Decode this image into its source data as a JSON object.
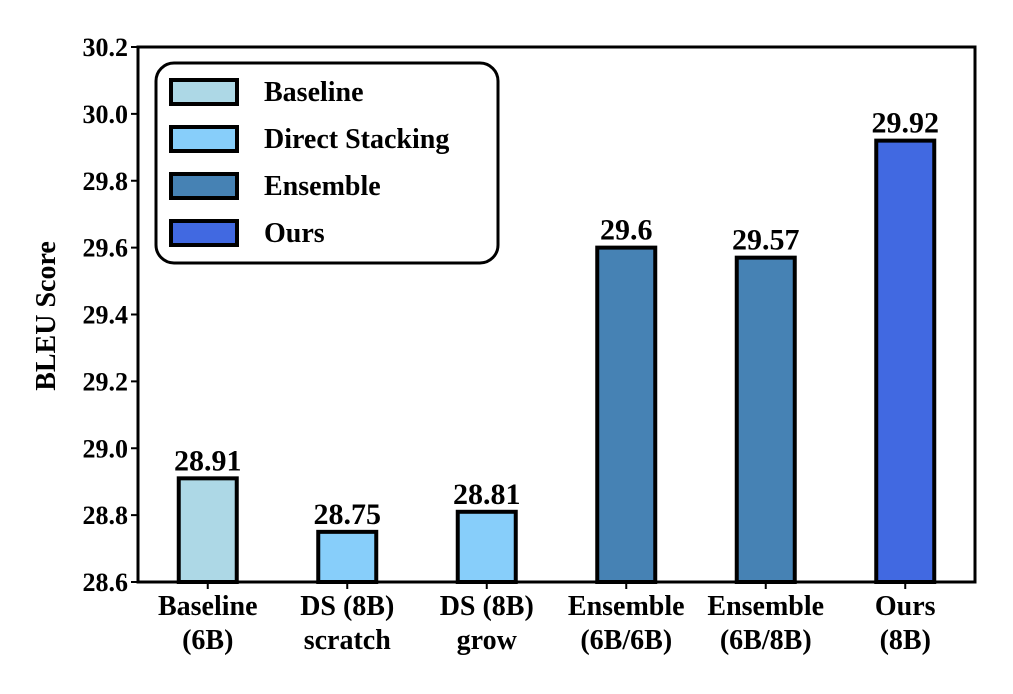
{
  "chart_data": {
    "type": "bar",
    "ylabel": "BLEU Score",
    "xlabel": "",
    "ylim": [
      28.6,
      30.2
    ],
    "yticks": [
      "28.6",
      "28.8",
      "29.0",
      "29.2",
      "29.4",
      "29.6",
      "29.8",
      "30.0",
      "30.2"
    ],
    "grid": false,
    "legend_position": "top-left",
    "categories": [
      [
        "Baseline",
        "(6B)"
      ],
      [
        "DS (8B)",
        "scratch"
      ],
      [
        "DS (8B)",
        "grow"
      ],
      [
        "Ensemble",
        "(6B/6B)"
      ],
      [
        "Ensemble",
        "(6B/8B)"
      ],
      [
        "Ours",
        "(8B)"
      ]
    ],
    "values": [
      28.91,
      28.75,
      28.81,
      29.6,
      29.57,
      29.92
    ],
    "value_labels": [
      "28.91",
      "28.75",
      "28.81",
      "29.6",
      "29.57",
      "29.92"
    ],
    "bar_group": [
      "Baseline",
      "Direct Stacking",
      "Direct Stacking",
      "Ensemble",
      "Ensemble",
      "Ours"
    ],
    "legend": [
      {
        "name": "Baseline",
        "color": "#add8e6"
      },
      {
        "name": "Direct Stacking",
        "color": "#87cefa"
      },
      {
        "name": "Ensemble",
        "color": "#4682b4"
      },
      {
        "name": "Ours",
        "color": "#4169e1"
      }
    ]
  }
}
